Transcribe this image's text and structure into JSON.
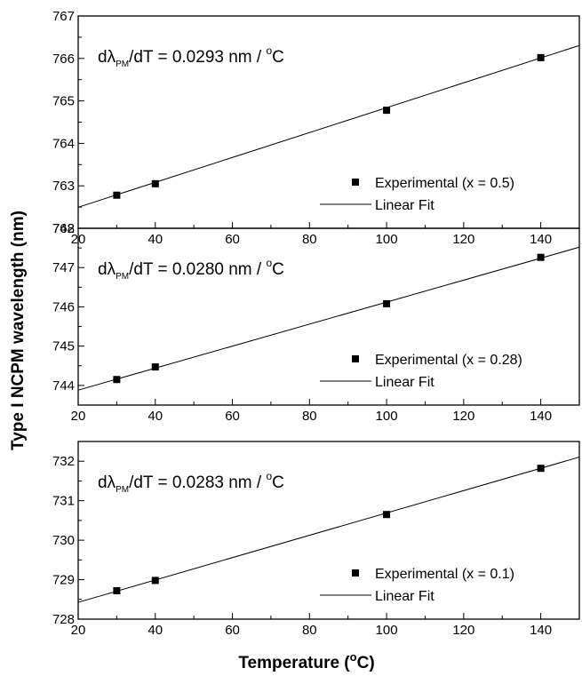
{
  "figure": {
    "ylabel": "Type I NCPM wavelength (nm)",
    "xlabel_prefix": "Temperature (",
    "xlabel_sup": "o",
    "xlabel_suffix": "C)"
  },
  "chart_data": [
    {
      "type": "scatter",
      "x": [
        30,
        40,
        100,
        140
      ],
      "y": [
        762.78,
        763.05,
        764.78,
        766.02
      ],
      "fit": {
        "slope": 0.0293,
        "intercept": 761.91
      },
      "xlim": [
        20,
        150
      ],
      "ylim": [
        762,
        767
      ],
      "xticks": [
        "20",
        "40",
        "60",
        "80",
        "100",
        "120",
        "140"
      ],
      "yticks": [
        "762",
        "763",
        "764",
        "765",
        "766",
        "767"
      ],
      "annotation": {
        "prefix": "dλ",
        "sub": "PM",
        "mid": "/dT = 0.0293 nm / ",
        "sup": "o",
        "suffix": "C"
      },
      "legend": {
        "experimental": "Experimental (x = 0.5)",
        "fit": "Linear Fit",
        "position": "bottom-right"
      }
    },
    {
      "type": "scatter",
      "x": [
        30,
        40,
        100,
        140
      ],
      "y": [
        744.15,
        744.47,
        746.08,
        747.26
      ],
      "fit": {
        "slope": 0.028,
        "intercept": 743.32
      },
      "xlim": [
        20,
        150
      ],
      "ylim": [
        743.5,
        748
      ],
      "xticks": [
        "20",
        "40",
        "60",
        "80",
        "100",
        "120",
        "140"
      ],
      "yticks": [
        "744",
        "745",
        "746",
        "747",
        "748"
      ],
      "annotation": {
        "prefix": "dλ",
        "sub": "PM",
        "mid": "/dT = 0.0280 nm / ",
        "sup": "o",
        "suffix": "C"
      },
      "legend": {
        "experimental": "Experimental (x = 0.28)",
        "fit": "Linear Fit",
        "position": "bottom-right"
      }
    },
    {
      "type": "scatter",
      "x": [
        30,
        40,
        100,
        140
      ],
      "y": [
        728.72,
        728.98,
        730.65,
        731.82
      ],
      "fit": {
        "slope": 0.0283,
        "intercept": 727.86
      },
      "xlim": [
        20,
        150
      ],
      "ylim": [
        728,
        732.5
      ],
      "xticks": [
        "20",
        "40",
        "60",
        "80",
        "100",
        "120",
        "140"
      ],
      "yticks": [
        "728",
        "729",
        "730",
        "731",
        "732"
      ],
      "annotation": {
        "prefix": "dλ",
        "sub": "PM",
        "mid": "/dT = 0.0283 nm / ",
        "sup": "o",
        "suffix": "C"
      },
      "legend": {
        "experimental": "Experimental (x = 0.1)",
        "fit": "Linear Fit",
        "position": "bottom-right"
      }
    }
  ]
}
